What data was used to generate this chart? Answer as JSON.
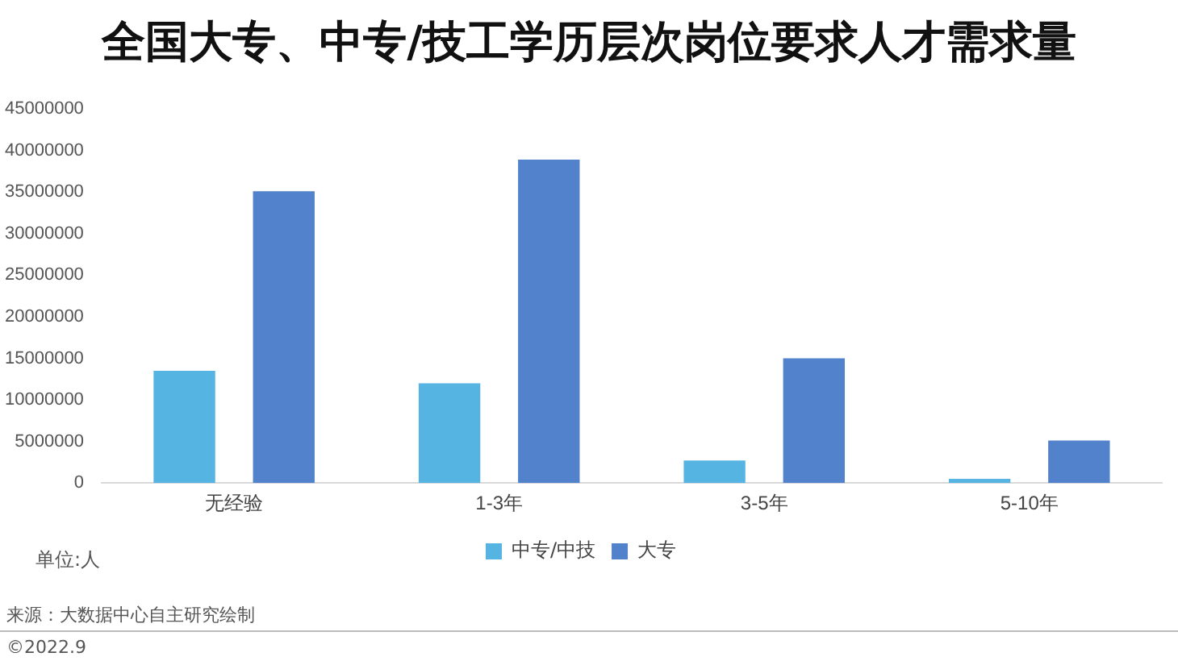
{
  "chart_data": {
    "type": "bar",
    "title": "全国大专、中专/技工学历层次岗位要求人才需求量",
    "ylabel": "单位:人",
    "categories": [
      "无经验",
      "1-3年",
      "3-5年",
      "5-10年"
    ],
    "series": [
      {
        "name": "中专/中技",
        "color": "#56b4e3",
        "values": [
          13500000,
          12000000,
          2700000,
          500000
        ]
      },
      {
        "name": "大专",
        "color": "#5182cb",
        "values": [
          35100000,
          38900000,
          15000000,
          5100000
        ]
      }
    ],
    "ylim": [
      0,
      45000000
    ],
    "yticks": [
      0,
      5000000,
      10000000,
      15000000,
      20000000,
      25000000,
      30000000,
      35000000,
      40000000,
      45000000
    ],
    "grid": false,
    "legend": "bottom",
    "annotations": [
      "来源：大数据中心自主研究绘制",
      "©2022.9"
    ]
  }
}
